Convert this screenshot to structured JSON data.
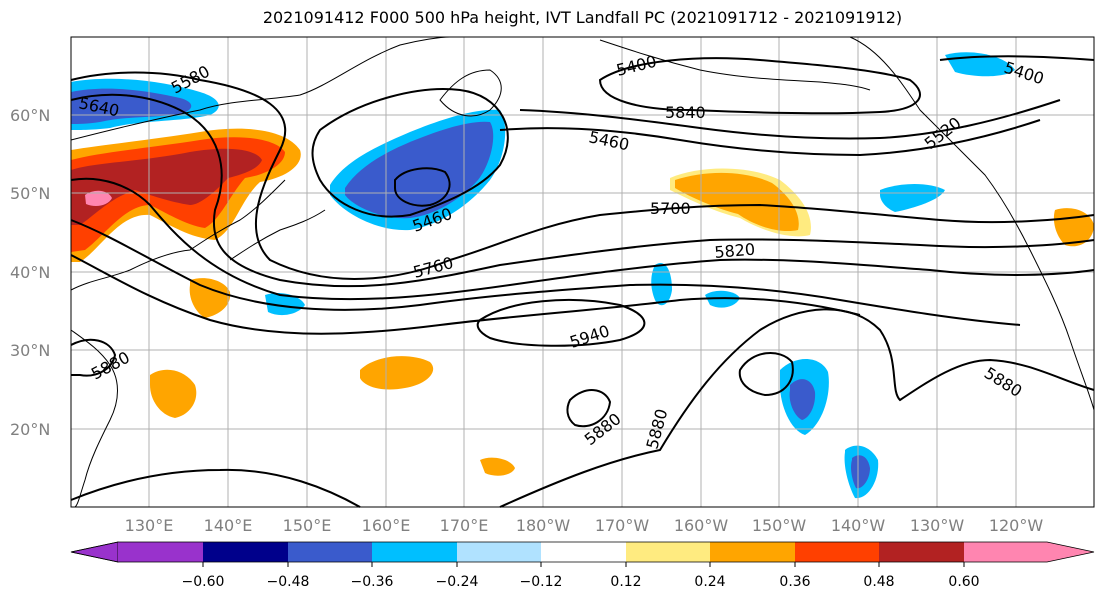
{
  "title": "2021091412 F000 500 hPa height, IVT Landfall PC (2021091712 - 2021091912)",
  "lat_labels": [
    "60°N",
    "50°N",
    "40°N",
    "30°N",
    "20°N"
  ],
  "lon_labels": [
    "130°E",
    "140°E",
    "150°E",
    "160°E",
    "170°E",
    "180°W",
    "170°W",
    "160°W",
    "150°W",
    "140°W",
    "130°W",
    "120°W"
  ],
  "contour_labels": [
    "5580",
    "5640",
    "5400",
    "5840",
    "5400",
    "5520",
    "5460",
    "5460",
    "5700",
    "5760",
    "5820",
    "5940",
    "5880",
    "5880",
    "5880",
    "5880"
  ],
  "colorbar": {
    "ticks": [
      "−0.60",
      "−0.48",
      "−0.36",
      "−0.24",
      "−0.12",
      "0.12",
      "0.24",
      "0.36",
      "0.48",
      "0.60"
    ],
    "colors": [
      "#9932cc",
      "#00008b",
      "#3a5bcc",
      "#00bfff",
      "#b0e2ff",
      "#ffffff",
      "#ffeb80",
      "#ffa500",
      "#ff4000",
      "#b22222",
      "#ff85b0"
    ]
  },
  "colors": {
    "positive_weak": "#ffeb80",
    "positive_mid": "#ffa500",
    "positive_strong": "#ff4000",
    "positive_stronger": "#b22222",
    "positive_max": "#ff85b0",
    "negative_weak": "#b0e2ff",
    "negative_mid": "#00bfff",
    "negative_strong": "#3a5bcc"
  }
}
